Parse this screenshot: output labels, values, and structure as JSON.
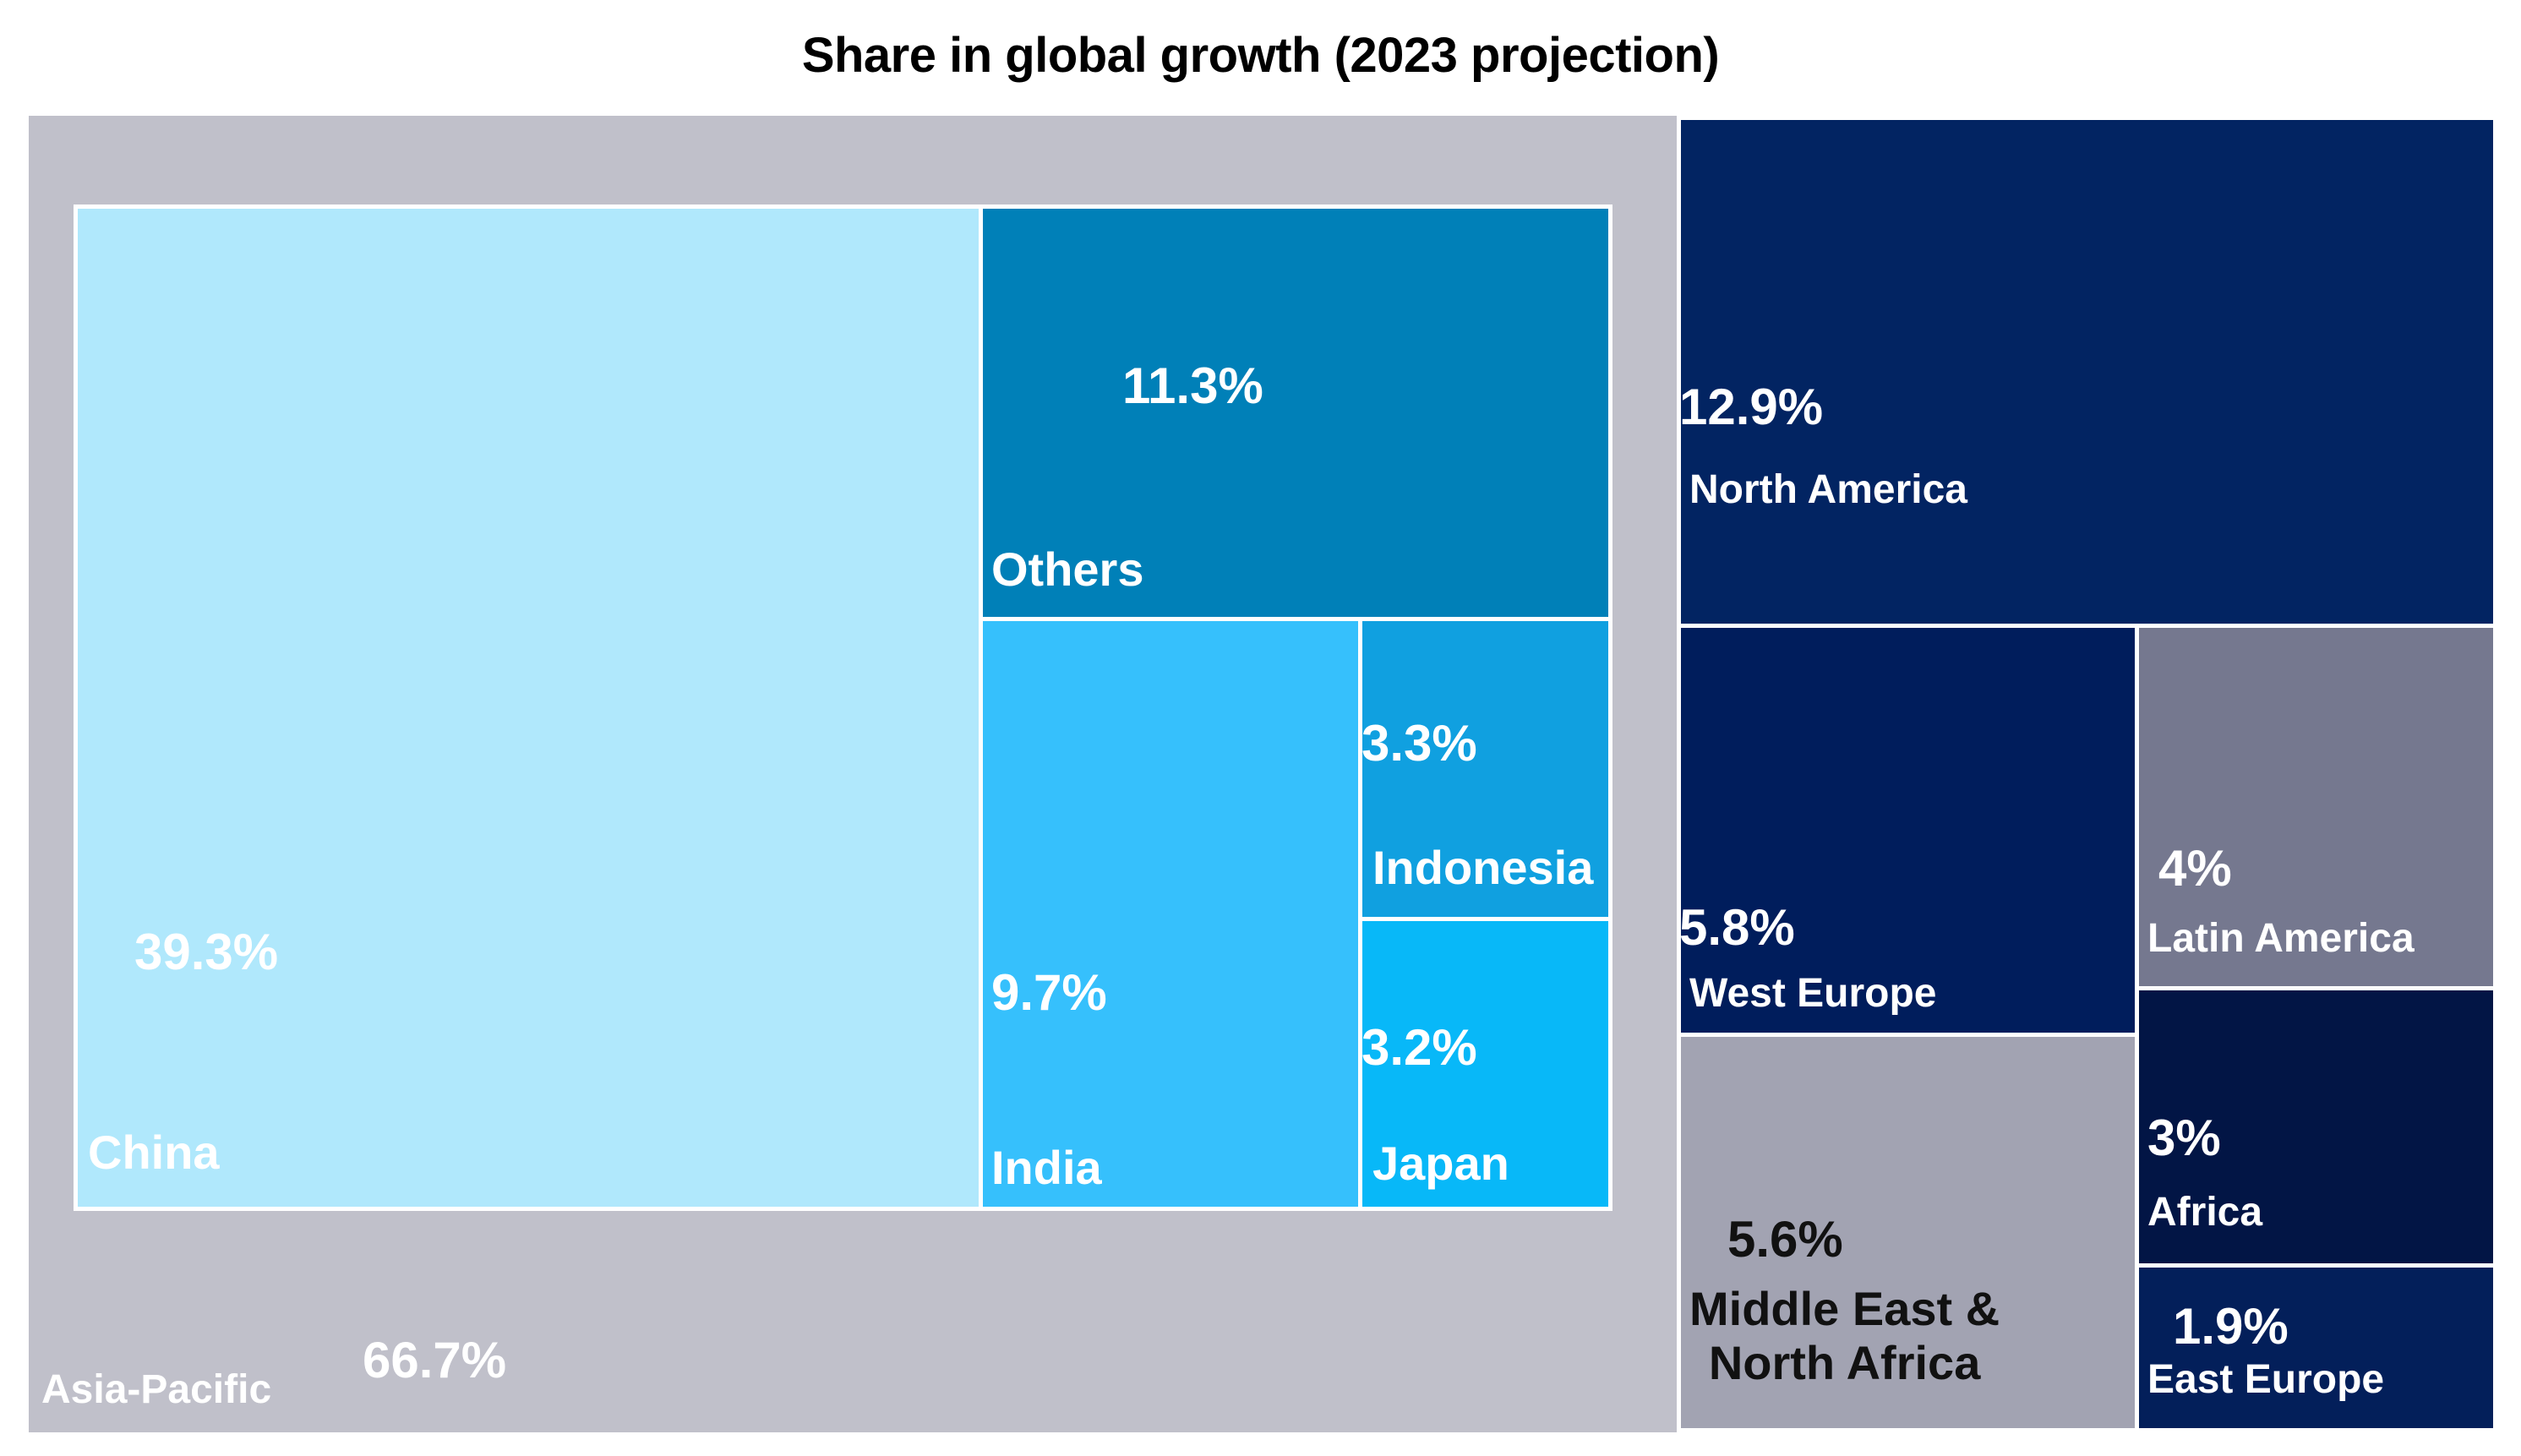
{
  "chart_data": {
    "type": "treemap",
    "title": "Share in global growth (2023 projection)",
    "unit": "%",
    "nodes": [
      {
        "name": "Asia-Pacific",
        "label": "66.7%",
        "value": 66.7,
        "color": "#c0c0ca",
        "children": [
          {
            "name": "China",
            "label": "39.3%",
            "value": 39.3,
            "color": "#b0e8fc"
          },
          {
            "name": "Others",
            "label": "11.3%",
            "value": 11.3,
            "color": "#0080b8"
          },
          {
            "name": "India",
            "label": "9.7%",
            "value": 9.7,
            "color": "#36c0fc"
          },
          {
            "name": "Indonesia",
            "label": "3.3%",
            "value": 3.3,
            "color": "#10a0e0"
          },
          {
            "name": "Japan",
            "label": "3.2%",
            "value": 3.2,
            "color": "#08b8f8"
          }
        ]
      },
      {
        "name": "North America",
        "label": "12.9%",
        "value": 12.9,
        "color": "#022462"
      },
      {
        "name": "West Europe",
        "label": "5.8%",
        "value": 5.8,
        "color": "#001d5c"
      },
      {
        "name": "Middle East & North Africa",
        "name_lines": [
          "Middle East &",
          "North Africa"
        ],
        "label": "5.6%",
        "value": 5.6,
        "color": "#a2a3b2"
      },
      {
        "name": "Latin America",
        "label": "4%",
        "value": 4,
        "color": "#75788f"
      },
      {
        "name": "Africa",
        "label": "3%",
        "value": 3,
        "color": "#021545"
      },
      {
        "name": "East Europe",
        "label": "1.9%",
        "value": 1.9,
        "color": "#031f5a"
      }
    ]
  }
}
